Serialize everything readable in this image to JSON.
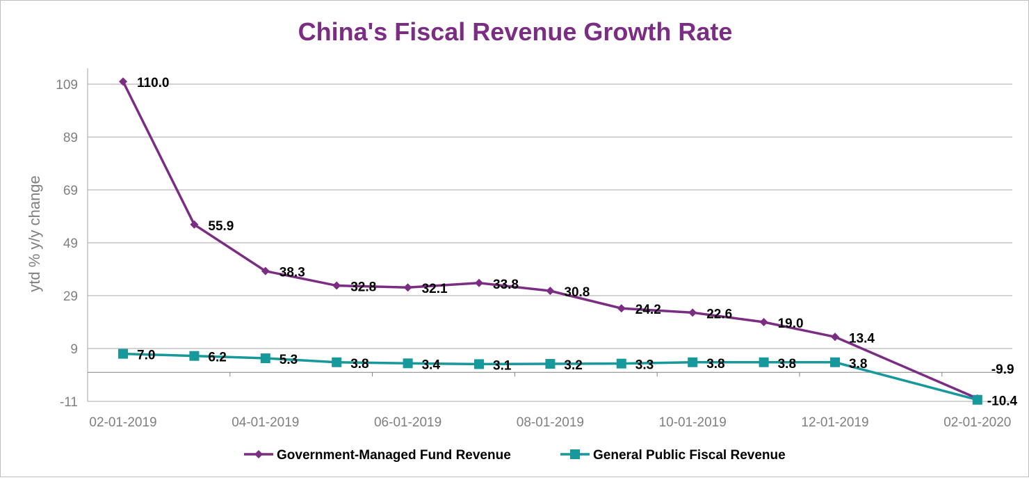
{
  "chart_data": {
    "type": "line",
    "title": "China's Fiscal Revenue Growth Rate",
    "xlabel": "",
    "ylabel": "ytd % y/y change",
    "ylim": [
      -11,
      109
    ],
    "yticks": [
      "109",
      "89",
      "69",
      "49",
      "29",
      "9",
      "-11"
    ],
    "xticks": [
      "02-01-2019",
      "04-01-2019",
      "06-01-2019",
      "08-01-2019",
      "10-01-2019",
      "12-01-2019",
      "02-01-2020"
    ],
    "x": [
      "2019-02",
      "2019-03",
      "2019-04",
      "2019-05",
      "2019-06",
      "2019-07",
      "2019-08",
      "2019-09",
      "2019-10",
      "2019-11",
      "2019-12",
      "2020-02"
    ],
    "grid": true,
    "legend_position": "bottom",
    "series": [
      {
        "name": "Government-Managed Fund Revenue",
        "color": "#7B2C83",
        "marker": "diamond",
        "values": [
          110.0,
          55.9,
          38.3,
          32.8,
          32.1,
          33.8,
          30.8,
          24.2,
          22.6,
          19.0,
          13.4,
          -9.9
        ],
        "labels": [
          "110.0",
          "55.9",
          "38.3",
          "32.8",
          "32.1",
          "33.8",
          "30.8",
          "24.2",
          "22.6",
          "19.0",
          "13.4",
          "-9.9"
        ]
      },
      {
        "name": "General Public Fiscal Revenue",
        "color": "#17989A",
        "marker": "square",
        "values": [
          7.0,
          6.2,
          5.3,
          3.8,
          3.4,
          3.1,
          3.2,
          3.3,
          3.8,
          3.8,
          3.8,
          -10.4
        ],
        "labels": [
          "7.0",
          "6.2",
          "5.3",
          "3.8",
          "3.4",
          "3.1",
          "3.2",
          "3.3",
          "3.8",
          "3.8",
          "3.8",
          "-10.4"
        ]
      }
    ]
  }
}
